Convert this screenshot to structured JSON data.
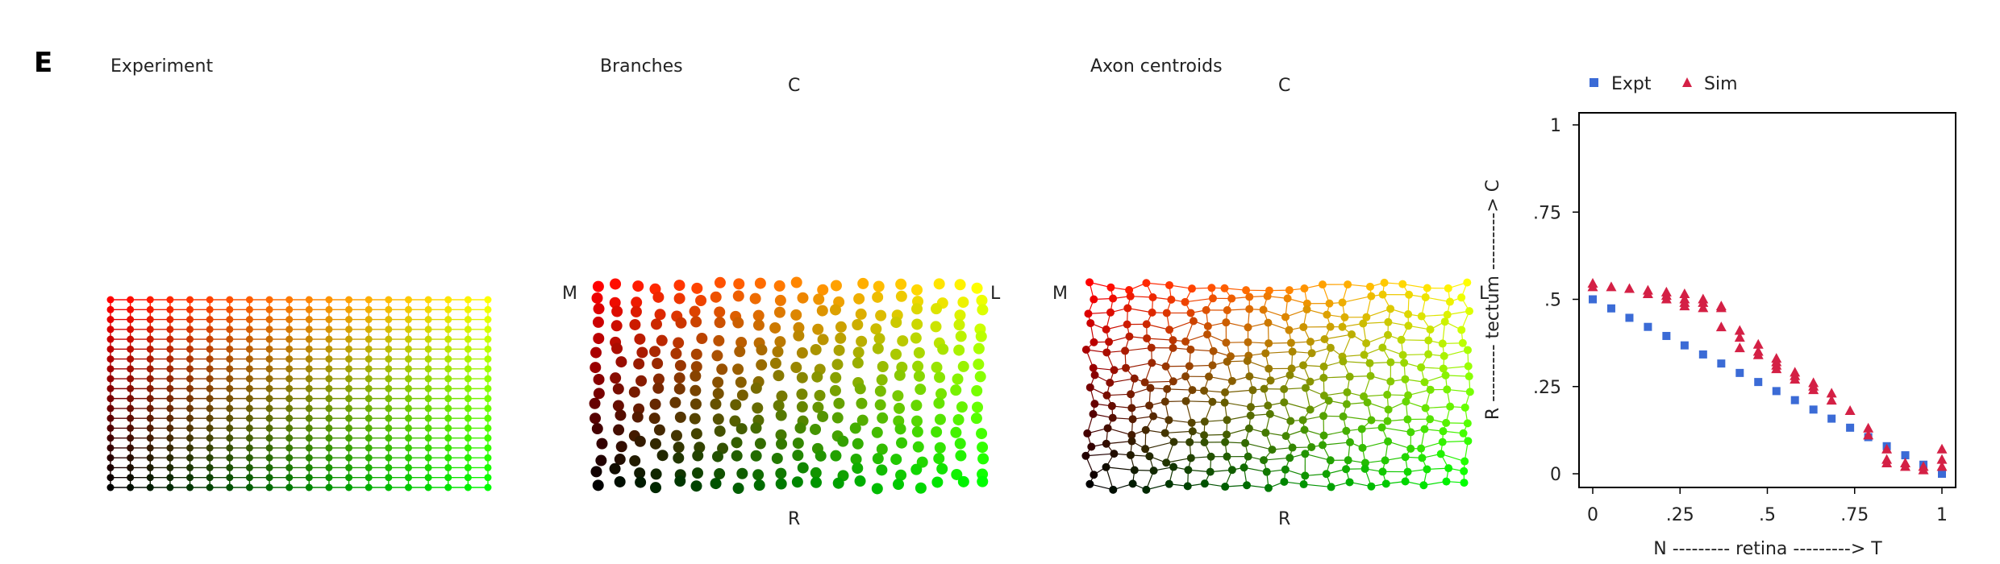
{
  "panel_letter": "E",
  "panels": {
    "experiment": {
      "title": "Experiment"
    },
    "branches": {
      "title": "Branches",
      "top": "C",
      "bottom": "R",
      "left": "M",
      "right": "L"
    },
    "centroids": {
      "title": "Axon centroids",
      "top": "C",
      "bottom": "R",
      "left": "M",
      "right": "L"
    }
  },
  "colors": {
    "grid_start": "#000000",
    "grid_x": "#00ff00",
    "grid_y": "#ff0000",
    "expt": "#3b6bd6",
    "sim": "#d42045"
  },
  "chart_data": {
    "type": "scatter",
    "xlabel": "N --------- retina ---------> T",
    "ylabel": "R --------- tectum ---------> C",
    "xlim": [
      0,
      1
    ],
    "ylim": [
      0,
      1
    ],
    "xticks": [
      "0",
      ".25",
      ".5",
      ".75",
      "1"
    ],
    "yticks": [
      "0",
      ".25",
      ".5",
      ".75",
      "1"
    ],
    "legend_position": "top",
    "series": [
      {
        "name": "Expt",
        "marker": "square",
        "x": [
          0,
          0.053,
          0.105,
          0.158,
          0.211,
          0.263,
          0.316,
          0.368,
          0.421,
          0.474,
          0.526,
          0.579,
          0.632,
          0.684,
          0.737,
          0.789,
          0.842,
          0.895,
          0.947,
          1.0
        ],
        "y": [
          0.5,
          0.474,
          0.447,
          0.421,
          0.395,
          0.368,
          0.342,
          0.316,
          0.289,
          0.263,
          0.237,
          0.211,
          0.184,
          0.158,
          0.132,
          0.105,
          0.079,
          0.053,
          0.026,
          0.0
        ]
      },
      {
        "name": "Sim",
        "marker": "triangle",
        "x": [
          0,
          0,
          0.053,
          0.105,
          0.158,
          0.158,
          0.211,
          0.211,
          0.211,
          0.263,
          0.263,
          0.263,
          0.263,
          0.316,
          0.316,
          0.316,
          0.368,
          0.368,
          0.368,
          0.421,
          0.421,
          0.421,
          0.474,
          0.474,
          0.474,
          0.526,
          0.526,
          0.526,
          0.526,
          0.579,
          0.579,
          0.579,
          0.632,
          0.632,
          0.632,
          0.684,
          0.684,
          0.737,
          0.789,
          0.789,
          0.842,
          0.842,
          0.842,
          0.895,
          0.895,
          0.947,
          0.947,
          1.0,
          1.0,
          1.0
        ],
        "y": [
          0.545,
          0.535,
          0.535,
          0.53,
          0.525,
          0.515,
          0.52,
          0.51,
          0.5,
          0.515,
          0.5,
          0.49,
          0.48,
          0.5,
          0.49,
          0.475,
          0.48,
          0.475,
          0.42,
          0.41,
          0.39,
          0.36,
          0.37,
          0.35,
          0.34,
          0.33,
          0.32,
          0.31,
          0.3,
          0.29,
          0.28,
          0.27,
          0.26,
          0.25,
          0.24,
          0.23,
          0.21,
          0.18,
          0.13,
          0.11,
          0.07,
          0.04,
          0.03,
          0.03,
          0.02,
          0.02,
          0.01,
          0.07,
          0.04,
          0.02
        ]
      }
    ]
  }
}
